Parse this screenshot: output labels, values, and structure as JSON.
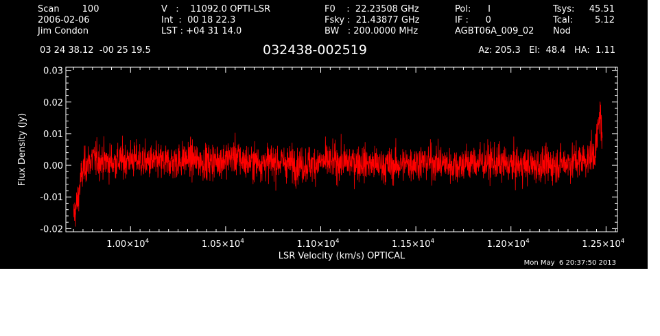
{
  "header": {
    "col1": [
      "Scan        100",
      "2006-02-06",
      "Jim Condon"
    ],
    "col2": [
      "V   :    11092.0 OPTI-LSR",
      "Int  :  00 18 22.3",
      "LST : +04 31 14.0"
    ],
    "col3": [
      "F0    :  22.23508 GHz",
      "Fsky :  21.43877 GHz",
      "BW   : 200.0000 MHz"
    ],
    "col4": [
      "Pol:      I",
      "IF :      0",
      "AGBT06A_009_02"
    ],
    "col5_labels": [
      "Tsys:",
      "Tcal:",
      "Nod"
    ],
    "col5_values": [
      "45.51",
      "5.12",
      ""
    ],
    "coords": "03 24 38.12  -00 25 19.5",
    "source": "032438-002519",
    "azelha": "Az: 205.3   El:  48.4   HA:  1.11",
    "timestamp": "Mon May  6 20:37:50 2013"
  },
  "colors": {
    "background": "#000000",
    "axes": "#ffffff",
    "trace": "#ff0000"
  },
  "chart_data": {
    "type": "line",
    "title": "032438-002519",
    "xlabel": "LSR Velocity (km/s) OPTICAL",
    "ylabel": "Flux Density (Jy)",
    "xlim": [
      9660,
      12560
    ],
    "ylim": [
      -0.021,
      0.031
    ],
    "x_ticks": [
      10000,
      10500,
      11000,
      11500,
      12000,
      12500
    ],
    "x_tick_labels": [
      {
        "mantissa": "1.00×10",
        "exp": "4"
      },
      {
        "mantissa": "1.05×10",
        "exp": "4"
      },
      {
        "mantissa": "1.10×10",
        "exp": "4"
      },
      {
        "mantissa": "1.15×10",
        "exp": "4"
      },
      {
        "mantissa": "1.20×10",
        "exp": "4"
      },
      {
        "mantissa": "1.25×10",
        "exp": "4"
      }
    ],
    "y_ticks": [
      -0.02,
      -0.01,
      0.0,
      0.01,
      0.02,
      0.03
    ],
    "y_tick_labels": [
      "-0.02",
      "-0.01",
      "0.00",
      "0.01",
      "0.02",
      "0.03"
    ],
    "grid": false,
    "series": [
      {
        "x": [
          9700,
          9720,
          9740,
          9760,
          9800,
          9900,
          10000,
          10100,
          10200,
          10300,
          10400,
          10500,
          10550,
          10600,
          10700,
          10800,
          10900,
          11000,
          11100,
          11200,
          11300,
          11400,
          11500,
          11600,
          11700,
          11800,
          11900,
          12000,
          12100,
          12200,
          12300,
          12400,
          12420,
          12440,
          12450,
          12460,
          12470,
          12480
        ],
        "y": [
          -0.016,
          -0.012,
          -0.004,
          0.0,
          0.002,
          0.001,
          0.002,
          0.001,
          0.001,
          0.002,
          0.001,
          0.002,
          0.003,
          0.001,
          0.001,
          0.001,
          0.0,
          0.001,
          0.001,
          0.001,
          0.0,
          0.0,
          0.001,
          0.001,
          0.0,
          0.001,
          0.001,
          0.0,
          0.0,
          0.0,
          0.001,
          0.002,
          0.003,
          0.004,
          0.007,
          0.012,
          0.018,
          0.005
        ],
        "noise_rms": 0.004
      }
    ]
  }
}
